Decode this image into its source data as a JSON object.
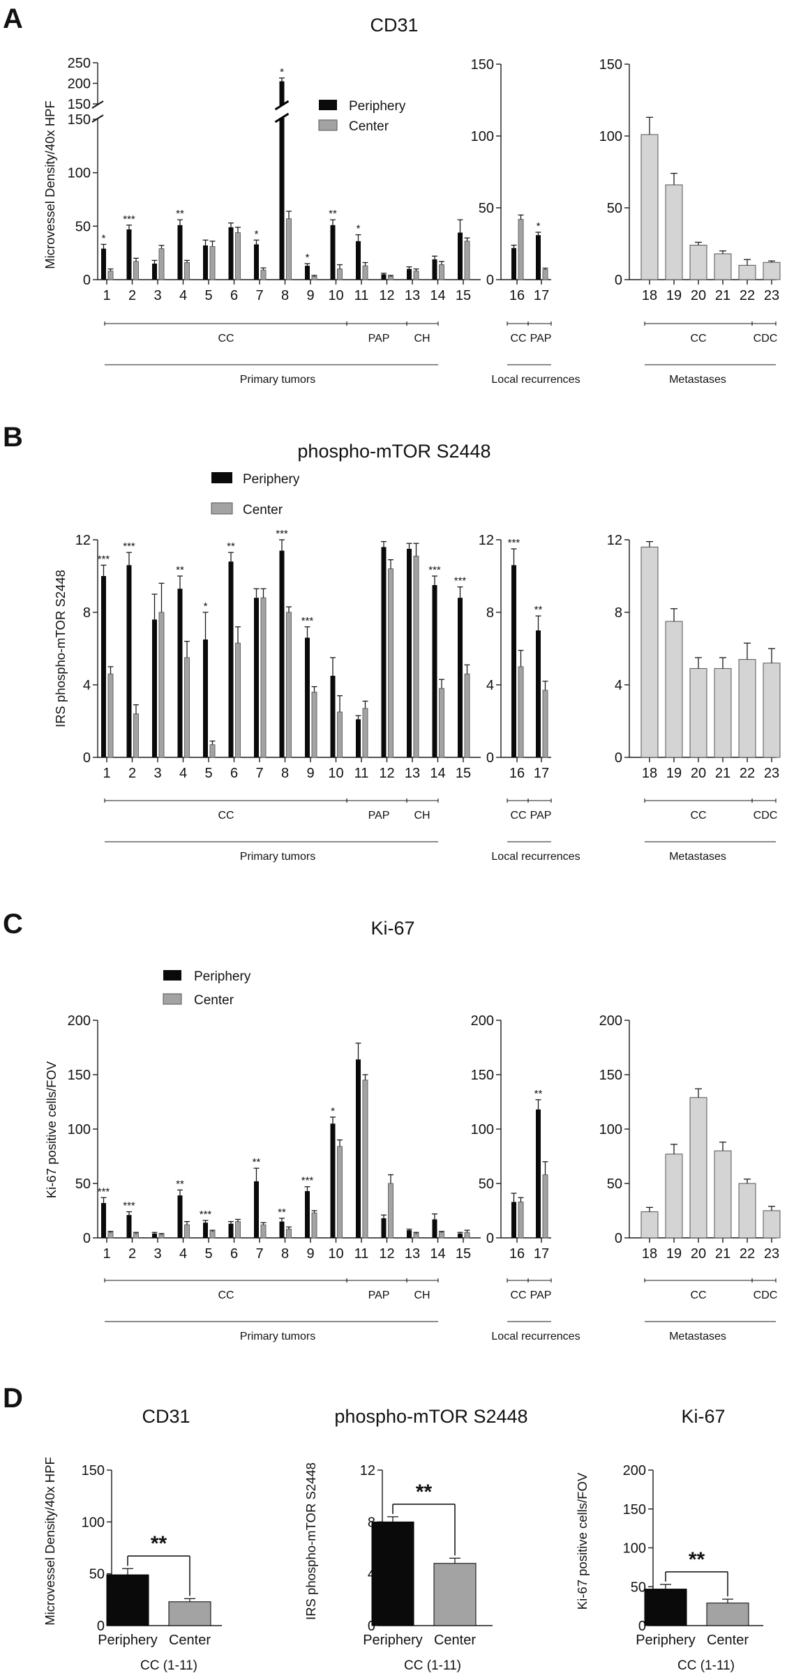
{
  "colors": {
    "periphery": "#0a0a0a",
    "center": "#a3a3a3",
    "metastasis": "#d4d4d4",
    "axis": "#1a1a1a"
  },
  "legend": {
    "periphery": "Periphery",
    "center": "Center"
  },
  "group_labels": {
    "cc": "CC",
    "pap": "PAP",
    "ch": "CH",
    "cdc": "CDC",
    "primary": "Primary tumors",
    "recurrence": "Local recurrences",
    "metastases": "Metastases"
  },
  "chart_data": [
    {
      "panel": "A",
      "title": "CD31",
      "type": "bar",
      "ylabel": "Microvessel Density/40x HPF",
      "subplots": [
        {
          "role": "primary",
          "categories": [
            "1",
            "2",
            "3",
            "4",
            "5",
            "6",
            "7",
            "8",
            "9",
            "10",
            "11",
            "12",
            "13",
            "14",
            "15"
          ],
          "ylim": [
            0,
            250
          ],
          "yticks": [
            0,
            50,
            100,
            150,
            200,
            250
          ],
          "axis_break": [
            150,
            150
          ],
          "upper_range": [
            150,
            250
          ],
          "series": [
            {
              "name": "Periphery",
              "values": [
                29,
                47,
                15,
                51,
                32,
                49,
                33,
                205,
                13,
                51,
                36,
                5,
                10,
                19,
                44
              ],
              "errors": [
                4,
                4,
                3,
                5,
                5,
                4,
                4,
                8,
                2,
                5,
                6,
                1,
                2,
                3,
                12
              ]
            },
            {
              "name": "Center",
              "values": [
                8,
                17,
                29,
                16,
                31,
                44,
                9,
                57,
                3,
                10,
                13,
                3,
                8,
                14,
                36
              ],
              "errors": [
                2,
                3,
                3,
                2,
                5,
                5,
                2,
                7,
                1,
                4,
                3,
                1,
                2,
                3,
                3
              ]
            }
          ],
          "significance": [
            "*",
            "***",
            "",
            "**",
            "",
            "",
            "*",
            "*",
            "*",
            "**",
            "*",
            "",
            "",
            "",
            ""
          ]
        },
        {
          "role": "recurrence",
          "categories": [
            "16",
            "17"
          ],
          "ylim": [
            0,
            150
          ],
          "yticks": [
            0,
            50,
            100,
            150
          ],
          "series": [
            {
              "name": "Periphery",
              "values": [
                22,
                31
              ],
              "errors": [
                2,
                2
              ]
            },
            {
              "name": "Center",
              "values": [
                42,
                7
              ],
              "errors": [
                3,
                1
              ]
            }
          ],
          "significance": [
            "",
            "*"
          ]
        },
        {
          "role": "metastasis",
          "categories": [
            "18",
            "19",
            "20",
            "21",
            "22",
            "23"
          ],
          "ylim": [
            0,
            150
          ],
          "yticks": [
            0,
            50,
            100,
            150
          ],
          "series": [
            {
              "name": "Metastases",
              "values": [
                101,
                66,
                24,
                18,
                10,
                12
              ],
              "errors": [
                12,
                8,
                2,
                2,
                4,
                1
              ]
            }
          ]
        }
      ]
    },
    {
      "panel": "B",
      "title": "phospho-mTOR S2448",
      "type": "bar",
      "ylabel": "IRS phospho-mTOR S2448",
      "subplots": [
        {
          "role": "primary",
          "categories": [
            "1",
            "2",
            "3",
            "4",
            "5",
            "6",
            "7",
            "8",
            "9",
            "10",
            "11",
            "12",
            "13",
            "14",
            "15"
          ],
          "ylim": [
            0,
            12
          ],
          "yticks": [
            0,
            4,
            8,
            12
          ],
          "series": [
            {
              "name": "Periphery",
              "values": [
                10,
                10.6,
                7.6,
                9.3,
                6.5,
                10.8,
                8.8,
                11.4,
                6.6,
                4.5,
                2.1,
                11.6,
                11.5,
                9.5,
                8.8
              ],
              "errors": [
                0.6,
                0.7,
                1.4,
                0.7,
                1.5,
                0.5,
                0.5,
                0.6,
                0.6,
                1.0,
                0.2,
                0.3,
                0.3,
                0.5,
                0.6
              ]
            },
            {
              "name": "Center",
              "values": [
                4.6,
                2.4,
                8,
                5.5,
                0.7,
                6.3,
                8.8,
                8,
                3.6,
                2.5,
                2.7,
                10.4,
                11.1,
                3.8,
                4.6
              ],
              "errors": [
                0.4,
                0.5,
                1.6,
                0.9,
                0.2,
                0.9,
                0.5,
                0.3,
                0.3,
                0.9,
                0.4,
                0.5,
                0.7,
                0.5,
                0.5
              ]
            }
          ],
          "significance": [
            "***",
            "***",
            "",
            "**",
            "*",
            "**",
            "",
            "***",
            "***",
            "",
            "",
            "",
            "",
            "***",
            "***"
          ]
        },
        {
          "role": "recurrence",
          "categories": [
            "16",
            "17"
          ],
          "ylim": [
            0,
            12
          ],
          "yticks": [
            0,
            4,
            8,
            12
          ],
          "series": [
            {
              "name": "Periphery",
              "values": [
                10.6,
                7
              ],
              "errors": [
                0.9,
                0.8
              ]
            },
            {
              "name": "Center",
              "values": [
                5,
                3.7
              ],
              "errors": [
                0.9,
                0.5
              ]
            }
          ],
          "significance": [
            "***",
            "**"
          ]
        },
        {
          "role": "metastasis",
          "categories": [
            "18",
            "19",
            "20",
            "21",
            "22",
            "23"
          ],
          "ylim": [
            0,
            12
          ],
          "yticks": [
            0,
            4,
            8,
            12
          ],
          "series": [
            {
              "name": "Metastases",
              "values": [
                11.6,
                7.5,
                4.9,
                4.9,
                5.4,
                5.2
              ],
              "errors": [
                0.3,
                0.7,
                0.6,
                0.6,
                0.9,
                0.8
              ]
            }
          ]
        }
      ]
    },
    {
      "panel": "C",
      "title": "Ki-67",
      "type": "bar",
      "ylabel": "Ki-67 positive cells/FOV",
      "subplots": [
        {
          "role": "primary",
          "categories": [
            "1",
            "2",
            "3",
            "4",
            "5",
            "6",
            "7",
            "8",
            "9",
            "10",
            "11",
            "12",
            "13",
            "14",
            "15"
          ],
          "ylim": [
            0,
            200
          ],
          "yticks": [
            0,
            50,
            100,
            150,
            200
          ],
          "series": [
            {
              "name": "Periphery",
              "values": [
                32,
                21,
                4,
                39,
                14,
                13,
                52,
                15,
                43,
                105,
                164,
                18,
                7,
                17,
                4
              ],
              "errors": [
                5,
                3,
                1,
                5,
                2,
                2,
                12,
                3,
                4,
                6,
                15,
                3,
                1,
                5,
                1
              ]
            },
            {
              "name": "Center",
              "values": [
                5,
                4,
                3,
                12,
                6,
                15,
                12,
                8,
                23,
                84,
                145,
                50,
                4,
                5,
                5
              ],
              "errors": [
                1,
                1,
                1,
                3,
                1,
                2,
                2,
                2,
                2,
                6,
                5,
                8,
                1,
                1,
                2
              ]
            }
          ],
          "significance": [
            "***",
            "***",
            "",
            "**",
            "***",
            "",
            "**",
            "**",
            "***",
            "*",
            "",
            "",
            "",
            "",
            ""
          ]
        },
        {
          "role": "recurrence",
          "categories": [
            "16",
            "17"
          ],
          "ylim": [
            0,
            200
          ],
          "yticks": [
            0,
            50,
            100,
            150,
            200
          ],
          "series": [
            {
              "name": "Periphery",
              "values": [
                33,
                118
              ],
              "errors": [
                8,
                9
              ]
            },
            {
              "name": "Center",
              "values": [
                33,
                58
              ],
              "errors": [
                4,
                12
              ]
            }
          ],
          "significance": [
            "",
            "**"
          ]
        },
        {
          "role": "metastasis",
          "categories": [
            "18",
            "19",
            "20",
            "21",
            "22",
            "23"
          ],
          "ylim": [
            0,
            200
          ],
          "yticks": [
            0,
            50,
            100,
            150,
            200
          ],
          "series": [
            {
              "name": "Metastases",
              "values": [
                24,
                77,
                129,
                80,
                50,
                25
              ],
              "errors": [
                4,
                9,
                8,
                8,
                4,
                4
              ]
            }
          ]
        }
      ]
    },
    {
      "panel": "D",
      "type": "bar",
      "subtitle": "CC (1-11)",
      "significance": "**",
      "charts": [
        {
          "title": "CD31",
          "ylabel": "Microvessel Density/40x HPF",
          "categories": [
            "Periphery",
            "Center"
          ],
          "values": [
            49,
            23
          ],
          "errors": [
            6,
            3
          ],
          "ylim": [
            0,
            150
          ],
          "yticks": [
            0,
            50,
            100,
            150
          ]
        },
        {
          "title": "phospho-mTOR S2448",
          "ylabel": "IRS phospho-mTOR S2448",
          "categories": [
            "Periphery",
            "Center"
          ],
          "values": [
            8.0,
            4.8
          ],
          "errors": [
            0.4,
            0.4
          ],
          "ylim": [
            0,
            12
          ],
          "yticks": [
            0,
            4,
            8,
            12
          ]
        },
        {
          "title": "Ki-67",
          "ylabel": "Ki-67 positive cells/FOV",
          "categories": [
            "Periphery",
            "Center"
          ],
          "values": [
            47,
            29
          ],
          "errors": [
            6,
            5
          ],
          "ylim": [
            0,
            200
          ],
          "yticks": [
            0,
            50,
            100,
            150,
            200
          ]
        }
      ]
    }
  ]
}
